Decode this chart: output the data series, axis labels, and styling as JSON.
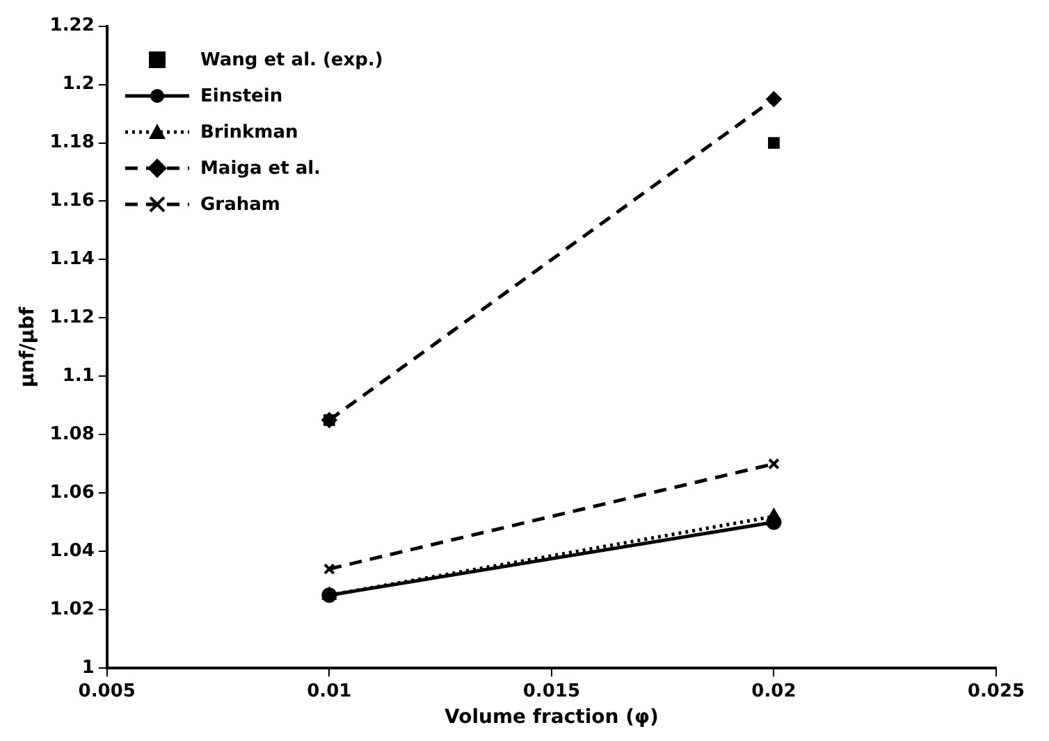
{
  "chart_data": {
    "type": "line",
    "xlabel": "Volume fraction (φ)",
    "ylabel": "μnf/μbf",
    "x": [
      0.01,
      0.02
    ],
    "xlim": [
      0.005,
      0.025
    ],
    "xticks": [
      0.005,
      0.01,
      0.015,
      0.02,
      0.025
    ],
    "ylim": [
      1,
      1.22
    ],
    "yticks": [
      1,
      1.02,
      1.04,
      1.06,
      1.08,
      1.1,
      1.12,
      1.14,
      1.16,
      1.18,
      1.2,
      1.22
    ],
    "grid": false,
    "legend": "top left",
    "series": [
      {
        "name": "Wang et al. (exp.)",
        "type": "scatter",
        "color": "#000000",
        "marker": "square",
        "values": [
          1.085,
          1.18
        ]
      },
      {
        "name": "Einstein",
        "type": "line",
        "color": "#000000",
        "marker": "circle",
        "line_style": "solid",
        "values": [
          1.025,
          1.05
        ]
      },
      {
        "name": "Brinkman",
        "type": "line",
        "color": "#000000",
        "marker": "triangle",
        "line_style": "dotted",
        "values": [
          1.025,
          1.052
        ]
      },
      {
        "name": "Maiga et al.",
        "type": "line",
        "color": "#000000",
        "marker": "diamond",
        "line_style": "dashed",
        "values": [
          1.085,
          1.195
        ]
      },
      {
        "name": "Graham",
        "type": "line",
        "color": "#000000",
        "marker": "cross",
        "line_style": "dashed",
        "values": [
          1.034,
          1.07
        ]
      }
    ]
  }
}
